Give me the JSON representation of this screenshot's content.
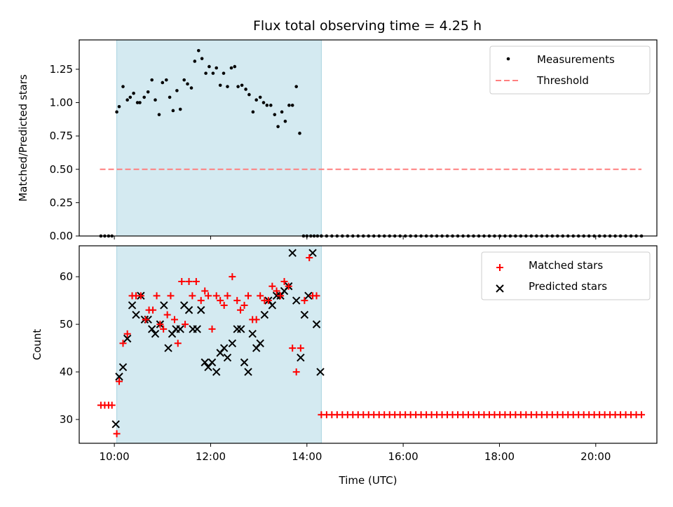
{
  "title": "Flux total observing time = 4.25 h",
  "colors": {
    "shade": "#d4eaf1",
    "shade_edge": "#a9d3e0",
    "measure": "#000000",
    "threshold": "#ff7f7f",
    "matched": "#ff0000",
    "predicted": "#000000"
  },
  "chart_data": [
    {
      "type": "scatter",
      "ylabel": "Matched/Predicted stars",
      "xlim": [
        9.27,
        21.27
      ],
      "ylim": [
        0.0,
        1.47
      ],
      "xticks": [
        {
          "v": 10,
          "label": ""
        },
        {
          "v": 12,
          "label": ""
        },
        {
          "v": 14,
          "label": ""
        },
        {
          "v": 16,
          "label": ""
        },
        {
          "v": 18,
          "label": ""
        },
        {
          "v": 20,
          "label": ""
        }
      ],
      "yticks": [
        {
          "v": 0,
          "label": "0.00"
        },
        {
          "v": 0.25,
          "label": "0.25"
        },
        {
          "v": 0.5,
          "label": "0.50"
        },
        {
          "v": 0.75,
          "label": "0.75"
        },
        {
          "v": 1.0,
          "label": "1.00"
        },
        {
          "v": 1.25,
          "label": "1.25"
        }
      ],
      "shaded_span": [
        10.05,
        14.3
      ],
      "legend": [
        {
          "label": "Measurements",
          "marker": "dot"
        },
        {
          "label": "Threshold",
          "marker": "dash"
        }
      ],
      "threshold": {
        "x": [
          9.7,
          20.95
        ],
        "y": 0.5
      },
      "measurements": {
        "x": [
          10.05,
          10.1,
          10.18,
          10.27,
          10.33,
          10.4,
          10.48,
          10.53,
          10.62,
          10.7,
          10.78,
          10.85,
          10.93,
          11.0,
          11.08,
          11.15,
          11.22,
          11.3,
          11.37,
          11.45,
          11.52,
          11.6,
          11.67,
          11.75,
          11.82,
          11.9,
          11.97,
          12.05,
          12.12,
          12.2,
          12.27,
          12.35,
          12.43,
          12.5,
          12.57,
          12.65,
          12.73,
          12.8,
          12.88,
          12.95,
          13.03,
          13.1,
          13.17,
          13.25,
          13.33,
          13.4,
          13.48,
          13.55,
          13.63,
          13.7,
          13.78,
          13.85,
          13.93,
          14.0,
          14.08,
          14.15,
          14.22,
          14.3
        ],
        "y": [
          0.93,
          0.97,
          1.12,
          1.02,
          1.04,
          1.07,
          1.0,
          1.0,
          1.04,
          1.08,
          1.17,
          1.02,
          0.91,
          1.15,
          1.17,
          1.04,
          0.94,
          1.09,
          0.95,
          1.17,
          1.14,
          1.11,
          1.31,
          1.39,
          1.33,
          1.22,
          1.27,
          1.22,
          1.26,
          1.13,
          1.22,
          1.12,
          1.26,
          1.27,
          1.12,
          1.13,
          1.1,
          1.06,
          0.93,
          1.02,
          1.04,
          1.0,
          0.98,
          0.98,
          0.91,
          0.82,
          0.93,
          0.86,
          0.98,
          0.98,
          1.12,
          0.77,
          0.0,
          0.0,
          0.0,
          0.0,
          0.0,
          0.0
        ]
      }
    },
    {
      "type": "scatter",
      "ylabel": "Count",
      "xlabel": "Time (UTC)",
      "xlim": [
        9.27,
        21.27
      ],
      "ylim": [
        25.0,
        66.5
      ],
      "xticks": [
        {
          "v": 10,
          "label": "10:00"
        },
        {
          "v": 12,
          "label": "12:00"
        },
        {
          "v": 14,
          "label": "14:00"
        },
        {
          "v": 16,
          "label": "16:00"
        },
        {
          "v": 18,
          "label": "18:00"
        },
        {
          "v": 20,
          "label": "20:00"
        }
      ],
      "yticks": [
        {
          "v": 30,
          "label": "30"
        },
        {
          "v": 40,
          "label": "40"
        },
        {
          "v": 50,
          "label": "50"
        },
        {
          "v": 60,
          "label": "60"
        }
      ],
      "shaded_span": [
        10.05,
        14.3
      ],
      "legend": [
        {
          "label": "Matched stars",
          "marker": "plus"
        },
        {
          "label": "Predicted stars",
          "marker": "cross"
        }
      ],
      "matched": {
        "x": [
          9.72,
          9.8,
          9.88,
          9.95,
          10.05,
          10.1,
          10.18,
          10.27,
          10.37,
          10.45,
          10.55,
          10.65,
          10.72,
          10.8,
          10.88,
          10.95,
          11.02,
          11.1,
          11.17,
          11.25,
          11.32,
          11.4,
          11.47,
          11.55,
          11.62,
          11.7,
          11.8,
          11.88,
          11.95,
          12.03,
          12.12,
          12.2,
          12.28,
          12.35,
          12.45,
          12.55,
          12.62,
          12.7,
          12.78,
          12.87,
          12.95,
          13.03,
          13.12,
          13.2,
          13.28,
          13.37,
          13.45,
          13.53,
          13.62,
          13.7,
          13.78,
          13.87,
          13.95,
          14.05,
          14.12,
          14.2
        ],
        "y": [
          33,
          33,
          33,
          33,
          27,
          38,
          46,
          48,
          56,
          56,
          56,
          51,
          53,
          53,
          56,
          50,
          49,
          52,
          56,
          51,
          46,
          59,
          50,
          59,
          56,
          59,
          55,
          57,
          56,
          49,
          56,
          55,
          54,
          56,
          60,
          55,
          53,
          54,
          56,
          51,
          51,
          56,
          55,
          55,
          58,
          57,
          56,
          59,
          58,
          45,
          40,
          45,
          55,
          64,
          56,
          56
        ]
      },
      "predicted": {
        "x": [
          10.03,
          10.1,
          10.18,
          10.27,
          10.37,
          10.45,
          10.55,
          10.63,
          10.7,
          10.78,
          10.85,
          10.95,
          11.03,
          11.12,
          11.2,
          11.28,
          11.37,
          11.45,
          11.55,
          11.63,
          11.72,
          11.8,
          11.88,
          11.95,
          12.03,
          12.12,
          12.2,
          12.28,
          12.35,
          12.45,
          12.55,
          12.63,
          12.7,
          12.78,
          12.87,
          12.95,
          13.03,
          13.12,
          13.2,
          13.28,
          13.37,
          13.45,
          13.53,
          13.62,
          13.7,
          13.78,
          13.87,
          13.95,
          14.03,
          14.12,
          14.2,
          14.28
        ],
        "y": [
          29,
          39,
          41,
          47,
          54,
          52,
          56,
          51,
          51,
          49,
          48,
          50,
          54,
          45,
          48,
          49,
          49,
          54,
          53,
          49,
          49,
          53,
          42,
          41,
          42,
          40,
          44,
          45,
          43,
          46,
          49,
          49,
          42,
          40,
          48,
          45,
          46,
          52,
          55,
          54,
          56,
          56,
          57,
          58,
          65,
          55,
          43,
          52,
          56,
          65,
          50,
          40
        ]
      },
      "baseline": {
        "x_start": 14.3,
        "x_end": 20.95,
        "count": 62,
        "y": 31
      }
    }
  ]
}
